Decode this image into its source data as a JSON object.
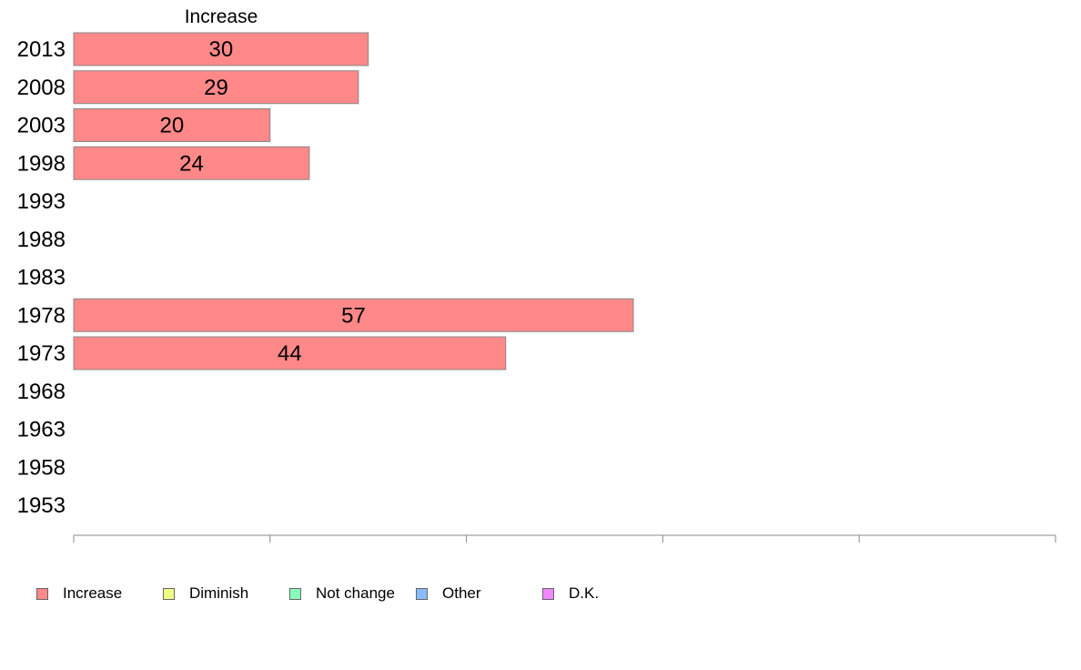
{
  "chart_data": {
    "type": "bar",
    "orientation": "horizontal",
    "stacked": true,
    "panel_title": "Increase",
    "categories": [
      "2013",
      "2008",
      "2003",
      "1998",
      "1993",
      "1988",
      "1983",
      "1978",
      "1973",
      "1968",
      "1963",
      "1958",
      "1953"
    ],
    "series": [
      {
        "name": "Increase",
        "color": "#ff8888",
        "values": [
          30,
          29,
          20,
          24,
          null,
          null,
          null,
          57,
          44,
          null,
          null,
          null,
          null
        ]
      },
      {
        "name": "Diminish",
        "color": "#eeff88",
        "values": [
          null,
          null,
          null,
          null,
          null,
          null,
          null,
          null,
          null,
          null,
          null,
          null,
          null
        ]
      },
      {
        "name": "Not change",
        "color": "#88ffbb",
        "values": [
          null,
          null,
          null,
          null,
          null,
          null,
          null,
          null,
          null,
          null,
          null,
          null,
          null
        ]
      },
      {
        "name": "Other",
        "color": "#88bbff",
        "values": [
          null,
          null,
          null,
          null,
          null,
          null,
          null,
          null,
          null,
          null,
          null,
          null,
          null
        ]
      },
      {
        "name": "D.K.",
        "color": "#ee88ff",
        "values": [
          null,
          null,
          null,
          null,
          null,
          null,
          null,
          null,
          null,
          null,
          null,
          null,
          null
        ]
      }
    ],
    "xlim": [
      0,
      100
    ],
    "xticks": [
      "0",
      "20",
      "40",
      "60",
      "80",
      "100"
    ],
    "grid": false,
    "legend_position": "bottom"
  },
  "legend": [
    {
      "label": "Increase",
      "color": "#ff8888"
    },
    {
      "label": "Diminish",
      "color": "#eeff88"
    },
    {
      "label": "Not change",
      "color": "#88ffbb"
    },
    {
      "label": "Other",
      "color": "#88bbff"
    },
    {
      "label": "D.K.",
      "color": "#ee88ff"
    }
  ]
}
